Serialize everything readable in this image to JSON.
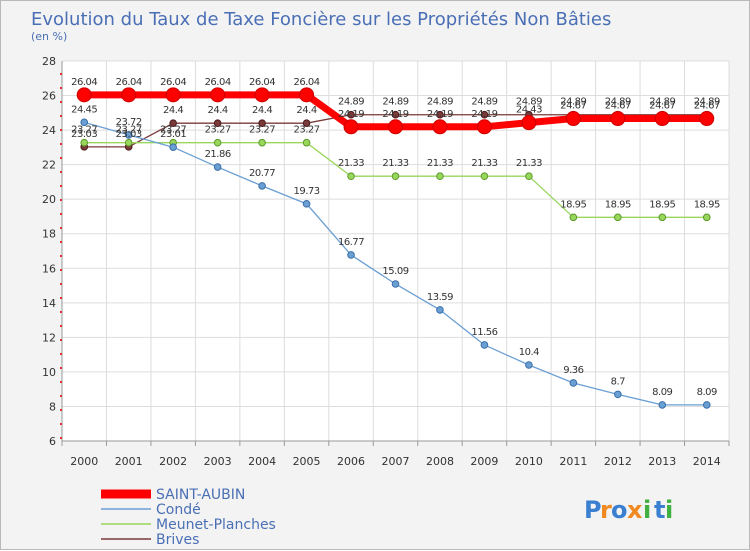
{
  "chart_data": {
    "type": "line",
    "title": "Evolution du Taux de Taxe Foncière sur les Propriétés Non Bâties",
    "ylabel": "(en %)",
    "xlabel": "",
    "ylim": [
      6,
      28
    ],
    "yticks": [
      6,
      8,
      10,
      12,
      14,
      16,
      18,
      20,
      22,
      24,
      26,
      28
    ],
    "x": [
      "2000",
      "2001",
      "2002",
      "2003",
      "2004",
      "2005",
      "2006",
      "2007",
      "2008",
      "2009",
      "2010",
      "2011",
      "2012",
      "2013",
      "2014"
    ],
    "grid": true,
    "legend_position": "bottom-left",
    "series": [
      {
        "name": "SAINT-AUBIN",
        "color": "#ff0000",
        "values": [
          26.04,
          26.04,
          26.04,
          26.04,
          26.04,
          26.04,
          24.19,
          24.19,
          24.19,
          24.19,
          24.43,
          24.67,
          24.67,
          24.67,
          24.67
        ],
        "labels": [
          "26.04",
          "26.04",
          "26.04",
          "26.04",
          "26.04",
          "26.04",
          "24.19",
          "24.19",
          "24.19",
          "24.19",
          "24.43",
          "24.67",
          "24.67",
          "24.67",
          "24.67"
        ]
      },
      {
        "name": "Condé",
        "color": "#6a9fd4",
        "values": [
          24.45,
          23.72,
          23.01,
          21.86,
          20.77,
          19.73,
          16.77,
          15.09,
          13.59,
          11.56,
          10.4,
          9.36,
          8.7,
          8.09,
          8.09
        ],
        "labels": [
          "24.45",
          "23.72",
          "23.01",
          "21.86",
          "20.77",
          "19.73",
          "16.77",
          "15.09",
          "13.59",
          "11.56",
          "10.4",
          "9.36",
          "8.7",
          "8.09",
          "8.09"
        ]
      },
      {
        "name": "Meunet-Planches",
        "color": "#99d65c",
        "values": [
          23.27,
          23.27,
          23.27,
          23.27,
          23.27,
          23.27,
          21.33,
          21.33,
          21.33,
          21.33,
          21.33,
          18.95,
          18.95,
          18.95,
          18.95
        ],
        "labels": [
          "23.27",
          "23.27",
          "23.27",
          "23.27",
          "23.27",
          "23.27",
          "21.33",
          "21.33",
          "21.33",
          "21.33",
          "21.33",
          "18.95",
          "18.95",
          "18.95",
          "18.95"
        ]
      },
      {
        "name": "Brives",
        "color": "#7a3a3a",
        "values": [
          23.03,
          23.03,
          24.4,
          24.4,
          24.4,
          24.4,
          24.89,
          24.89,
          24.89,
          24.89,
          24.89,
          24.89,
          24.89,
          24.89,
          24.89
        ],
        "labels": [
          "23.03",
          "23.03",
          "24.4",
          "24.4",
          "24.4",
          "24.4",
          "24.89",
          "24.89",
          "24.89",
          "24.89",
          "24.89",
          "24.89",
          "24.89",
          "24.89",
          "24.89"
        ]
      }
    ]
  },
  "logo": {
    "text": "Proxiti",
    "letters": [
      "P",
      "r",
      "o",
      "x",
      "i",
      "t",
      "i"
    ]
  }
}
